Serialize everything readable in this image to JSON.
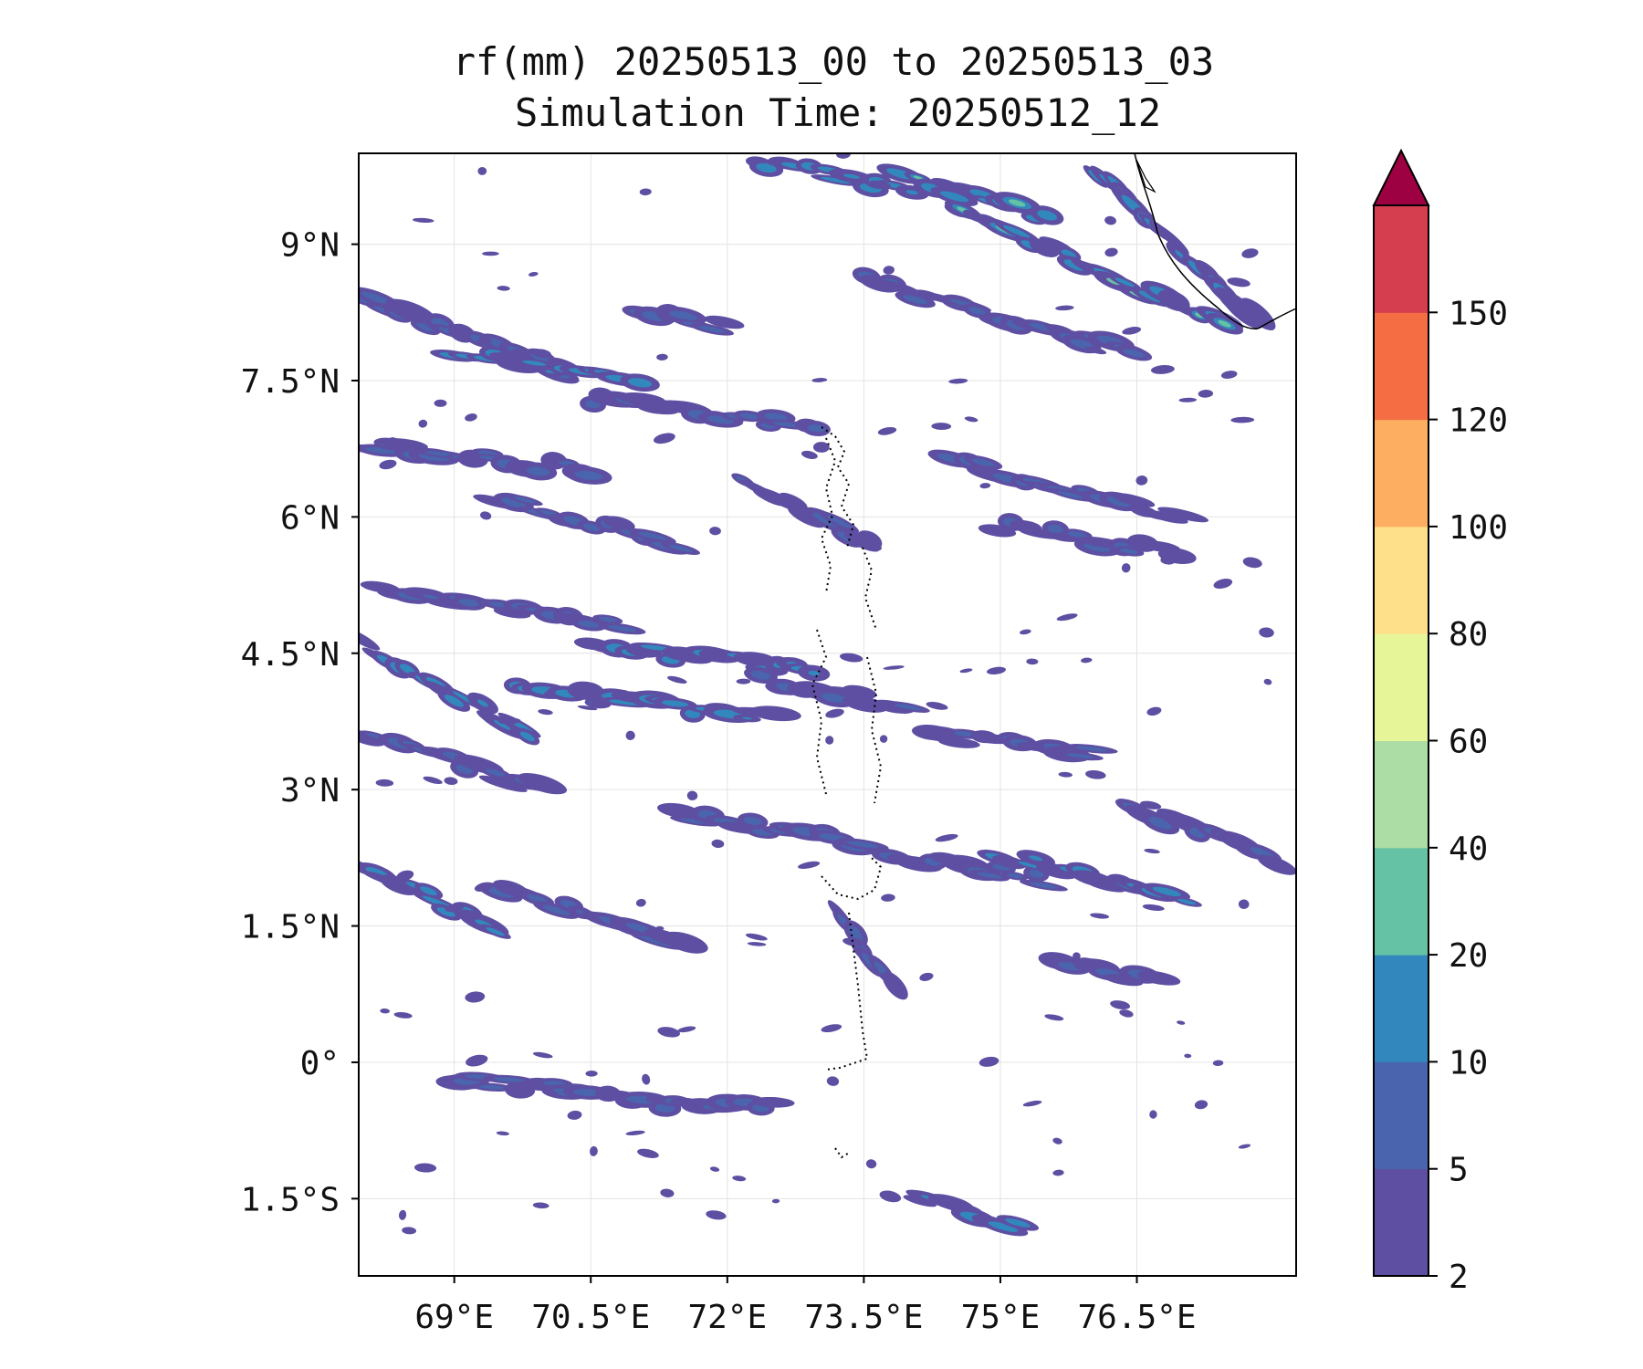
{
  "title": {
    "line1": "rf(mm) 20250513_00 to 20250513_03",
    "line2": "Simulation Time: 20250512_12"
  },
  "map": {
    "lon_range": [
      68.0,
      78.0
    ],
    "lat_range": [
      -2.0,
      10.0
    ],
    "x_ticks": [
      {
        "value": 69.0,
        "label": "69°E"
      },
      {
        "value": 70.5,
        "label": "70.5°E"
      },
      {
        "value": 72.0,
        "label": "72°E"
      },
      {
        "value": 73.5,
        "label": "73.5°E"
      },
      {
        "value": 75.0,
        "label": "75°E"
      },
      {
        "value": 76.5,
        "label": "76.5°E"
      }
    ],
    "y_ticks": [
      {
        "value": 9.0,
        "label": "9°N"
      },
      {
        "value": 7.5,
        "label": "7.5°N"
      },
      {
        "value": 6.0,
        "label": "6°N"
      },
      {
        "value": 4.5,
        "label": "4.5°N"
      },
      {
        "value": 3.0,
        "label": "3°N"
      },
      {
        "value": 1.5,
        "label": "1.5°N"
      },
      {
        "value": 0.0,
        "label": "0°"
      },
      {
        "value": -1.5,
        "label": "1.5°S"
      }
    ],
    "gridlines": true
  },
  "colorbar": {
    "levels": [
      "2",
      "5",
      "10",
      "20",
      "40",
      "60",
      "80",
      "100",
      "120",
      "150"
    ],
    "colors": [
      "#5e4fa2",
      "#4a64ad",
      "#3288bd",
      "#66c2a5",
      "#abdda4",
      "#e6f598",
      "#fee08b",
      "#fdae61",
      "#f46d43",
      "#d53e4f"
    ],
    "extend_color": "#9e0142",
    "extend": "max"
  },
  "chart_data": {
    "type": "heatmap",
    "title": "rf(mm) 20250513_00 to 20250513_03",
    "subtitle": "Simulation Time: 20250512_12",
    "xlabel": "",
    "ylabel": "",
    "x_range": [
      68.0,
      78.0
    ],
    "y_range": [
      -2.0,
      10.0
    ],
    "color_levels": [
      2,
      5,
      10,
      20,
      40,
      60,
      80,
      100,
      120,
      150
    ],
    "rain_bands": [
      {
        "lon": [
          68.0,
          70.2
        ],
        "lat": [
          8.4,
          7.6
        ],
        "level": 5
      },
      {
        "lon": [
          69.0,
          71.0
        ],
        "lat": [
          7.8,
          7.5
        ],
        "level": 10
      },
      {
        "lon": [
          71.0,
          72.0
        ],
        "lat": [
          8.3,
          8.1
        ],
        "level": 5
      },
      {
        "lon": [
          72.3,
          74.0
        ],
        "lat": [
          9.9,
          9.6
        ],
        "level": 10
      },
      {
        "lon": [
          73.8,
          75.5
        ],
        "lat": [
          9.8,
          9.3
        ],
        "level": 20
      },
      {
        "lon": [
          74.5,
          77.5
        ],
        "lat": [
          9.4,
          8.1
        ],
        "level": 20
      },
      {
        "lon": [
          76.0,
          77.8
        ],
        "lat": [
          9.8,
          8.2
        ],
        "level": 10
      },
      {
        "lon": [
          73.5,
          76.5
        ],
        "lat": [
          8.6,
          7.8
        ],
        "level": 5
      },
      {
        "lon": [
          70.5,
          73.0
        ],
        "lat": [
          7.3,
          7.0
        ],
        "level": 5
      },
      {
        "lon": [
          68.0,
          70.5
        ],
        "lat": [
          6.8,
          6.5
        ],
        "level": 5
      },
      {
        "lon": [
          69.5,
          71.5
        ],
        "lat": [
          6.2,
          5.7
        ],
        "level": 5
      },
      {
        "lon": [
          72.2,
          73.6
        ],
        "lat": [
          6.4,
          5.7
        ],
        "level": 5
      },
      {
        "lon": [
          74.5,
          77.0
        ],
        "lat": [
          6.6,
          6.0
        ],
        "level": 5
      },
      {
        "lon": [
          75.0,
          76.9
        ],
        "lat": [
          5.9,
          5.6
        ],
        "level": 5
      },
      {
        "lon": [
          68.2,
          70.8
        ],
        "lat": [
          5.2,
          4.8
        ],
        "level": 5
      },
      {
        "lon": [
          70.5,
          73.0
        ],
        "lat": [
          4.6,
          4.3
        ],
        "level": 10
      },
      {
        "lon": [
          68.0,
          69.8
        ],
        "lat": [
          4.6,
          3.6
        ],
        "level": 10
      },
      {
        "lon": [
          69.7,
          72.5
        ],
        "lat": [
          4.1,
          3.8
        ],
        "level": 10
      },
      {
        "lon": [
          72.4,
          74.0
        ],
        "lat": [
          4.2,
          3.9
        ],
        "level": 5
      },
      {
        "lon": [
          74.2,
          76.0
        ],
        "lat": [
          3.6,
          3.4
        ],
        "level": 5
      },
      {
        "lon": [
          68.0,
          70.0
        ],
        "lat": [
          3.6,
          3.0
        ],
        "level": 5
      },
      {
        "lon": [
          71.5,
          73.5
        ],
        "lat": [
          2.7,
          2.4
        ],
        "level": 5
      },
      {
        "lon": [
          73.8,
          75.5
        ],
        "lat": [
          2.3,
          2.0
        ],
        "level": 5
      },
      {
        "lon": [
          75.0,
          77.0
        ],
        "lat": [
          2.3,
          1.8
        ],
        "level": 10
      },
      {
        "lon": [
          76.5,
          78.0
        ],
        "lat": [
          2.8,
          2.2
        ],
        "level": 5
      },
      {
        "lon": [
          68.0,
          69.5
        ],
        "lat": [
          2.1,
          1.5
        ],
        "level": 10
      },
      {
        "lon": [
          69.5,
          71.5
        ],
        "lat": [
          1.9,
          1.3
        ],
        "level": 5
      },
      {
        "lon": [
          73.2,
          73.8
        ],
        "lat": [
          1.6,
          0.9
        ],
        "level": 5
      },
      {
        "lon": [
          75.6,
          76.7
        ],
        "lat": [
          1.1,
          0.9
        ],
        "level": 5
      },
      {
        "lon": [
          69.0,
          70.5
        ],
        "lat": [
          -0.2,
          -0.3
        ],
        "level": 5
      },
      {
        "lon": [
          70.5,
          72.5
        ],
        "lat": [
          -0.4,
          -0.5
        ],
        "level": 5
      },
      {
        "lon": [
          74.1,
          75.2
        ],
        "lat": [
          -1.5,
          -1.8
        ],
        "level": 10
      }
    ]
  }
}
